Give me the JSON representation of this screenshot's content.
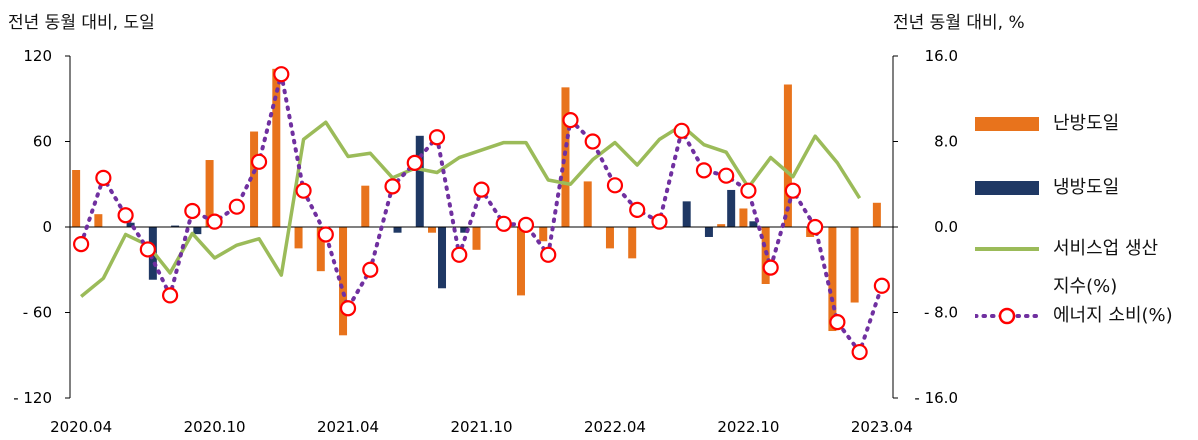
{
  "chart_data": {
    "type": "bar+line",
    "y_left_title": "전년 동월 대비, 도일",
    "y_right_title": "전년 동월 대비, %",
    "y_left_ticks": [
      "120",
      "60",
      "0",
      "- 60",
      "- 120"
    ],
    "y_right_ticks": [
      "16.0",
      "8.0",
      "0.0",
      "- 8.0",
      "- 16.0"
    ],
    "y_left_range": [
      -120,
      120
    ],
    "y_right_range": [
      -16,
      16
    ],
    "x_tick_labels": [
      "2020.04",
      "2020.10",
      "2021.04",
      "2021.10",
      "2022.04",
      "2022.10",
      "2023.04"
    ],
    "months": [
      "2020.04",
      "2020.05",
      "2020.06",
      "2020.07",
      "2020.08",
      "2020.09",
      "2020.10",
      "2020.11",
      "2020.12",
      "2021.01",
      "2021.02",
      "2021.03",
      "2021.04",
      "2021.05",
      "2021.06",
      "2021.07",
      "2021.08",
      "2021.09",
      "2021.10",
      "2021.11",
      "2021.12",
      "2022.01",
      "2022.02",
      "2022.03",
      "2022.04",
      "2022.05",
      "2022.06",
      "2022.07",
      "2022.08",
      "2022.09",
      "2022.10",
      "2022.11",
      "2022.12",
      "2023.01",
      "2023.02",
      "2023.03",
      "2023.04"
    ],
    "series": [
      {
        "name": "난방도일",
        "type": "bar",
        "axis": "left",
        "color": "#E8731C",
        "values": [
          40,
          9,
          0,
          0,
          0,
          0,
          47,
          0,
          67,
          111,
          -15,
          -31,
          -76,
          29,
          0,
          0,
          -4,
          0,
          -16,
          0,
          -48,
          -10,
          98,
          32,
          -15,
          -22,
          0,
          0,
          0,
          2,
          13,
          -40,
          100,
          -7,
          -73,
          -53,
          17
        ]
      },
      {
        "name": "냉방도일",
        "type": "bar",
        "axis": "left",
        "color": "#1F3864",
        "values": [
          0,
          0,
          3,
          -37,
          1,
          -5,
          0,
          0,
          0,
          0,
          0,
          0,
          0,
          0,
          -4,
          64,
          -43,
          -4,
          0,
          0,
          0,
          0,
          0,
          0,
          0,
          0,
          0,
          18,
          -7,
          26,
          4,
          0,
          0,
          0,
          0,
          0,
          0
        ]
      },
      {
        "name": "서비스업 생산지수(%)",
        "type": "line",
        "axis": "right",
        "color": "#9BBB59",
        "values": [
          -6.5,
          -4.8,
          -0.7,
          -1.7,
          -4.3,
          -0.6,
          -2.9,
          -1.7,
          -1.1,
          -4.5,
          8.2,
          9.8,
          6.6,
          6.9,
          4.6,
          5.5,
          5.1,
          6.5,
          7.2,
          7.9,
          7.9,
          4.4,
          4.0,
          6.3,
          7.9,
          5.8,
          8.2,
          9.5,
          7.7,
          7.0,
          3.7,
          6.5,
          4.7,
          8.5,
          6.0,
          2.7,
          null
        ]
      },
      {
        "name": "에너지 소비(%)",
        "type": "line-marker",
        "axis": "right",
        "color": "#7030A0",
        "marker_color": "#FF0000",
        "values": [
          -1.6,
          4.6,
          1.1,
          -2.1,
          -6.4,
          1.5,
          0.5,
          1.9,
          6.1,
          14.3,
          3.4,
          -0.7,
          -7.6,
          -4.0,
          3.8,
          6.0,
          8.4,
          -2.6,
          3.5,
          0.3,
          0.2,
          -2.6,
          10.0,
          8.0,
          3.9,
          1.6,
          0.5,
          9.0,
          5.3,
          4.8,
          3.4,
          -3.8,
          3.4,
          0.0,
          -8.9,
          -11.7,
          -5.5
        ]
      }
    ],
    "legend_position": "right",
    "grid": false
  }
}
